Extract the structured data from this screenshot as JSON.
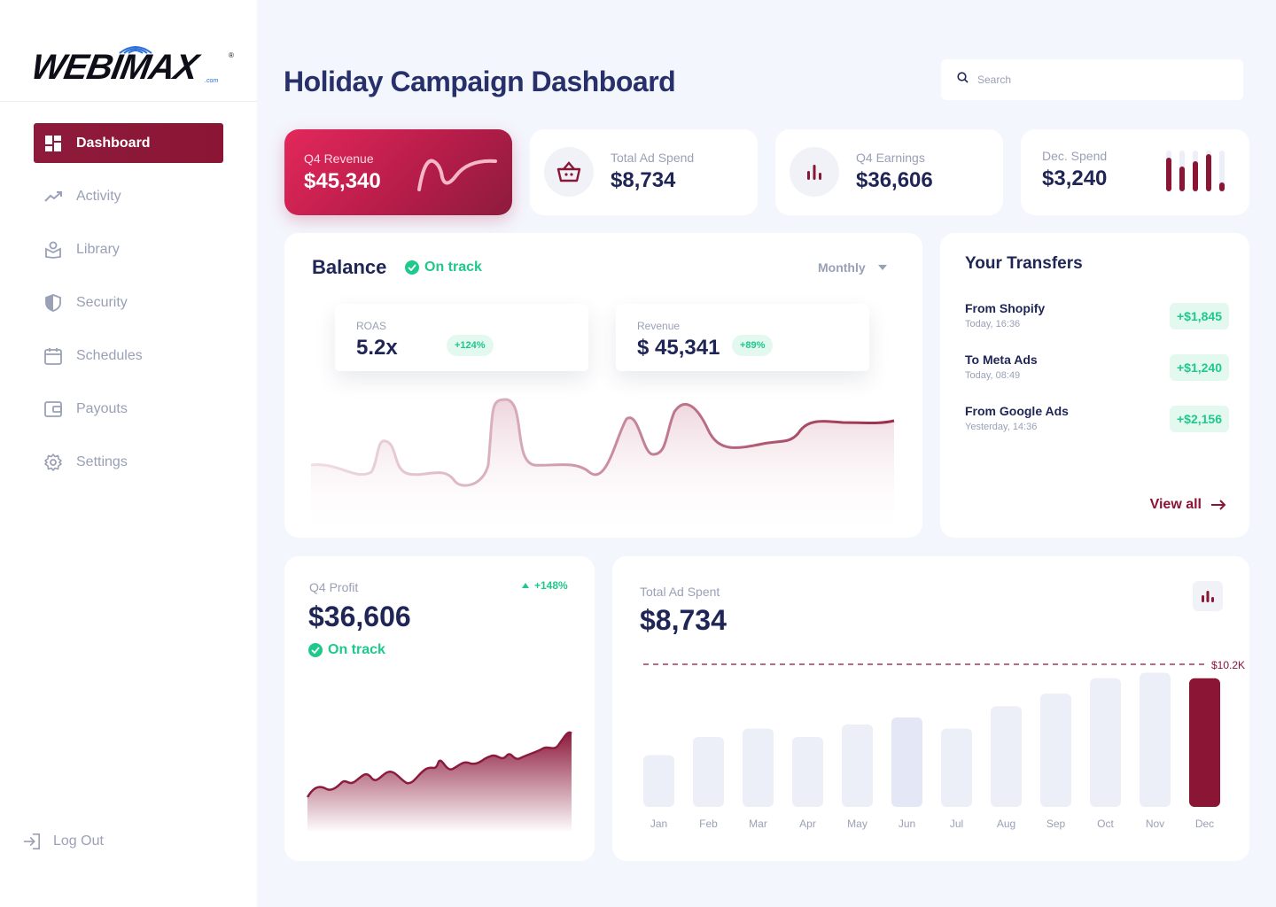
{
  "brand": {
    "logo_text": "WEBIMAX",
    "logo_reg": "®",
    "logo_sub": ".com",
    "accent": "#8a1535",
    "green": "#1ec98b"
  },
  "sidebar": {
    "items": [
      {
        "label": "Dashboard",
        "icon": "dashboard-icon",
        "active": true
      },
      {
        "label": "Activity",
        "icon": "activity-icon"
      },
      {
        "label": "Library",
        "icon": "library-icon"
      },
      {
        "label": "Security",
        "icon": "shield-icon"
      },
      {
        "label": "Schedules",
        "icon": "calendar-icon"
      },
      {
        "label": "Payouts",
        "icon": "wallet-icon"
      },
      {
        "label": "Settings",
        "icon": "gear-icon"
      }
    ],
    "logout": "Log Out"
  },
  "header": {
    "title": "Holiday Campaign Dashboard",
    "search_placeholder": "Search"
  },
  "kpis": [
    {
      "label": "Q4 Revenue",
      "value": "$45,340"
    },
    {
      "label": "Total Ad Spend",
      "value": "$8,734"
    },
    {
      "label": "Q4 Earnings",
      "value": "$36,606"
    },
    {
      "label": "Dec. Spend",
      "value": "$3,240"
    }
  ],
  "balance": {
    "title": "Balance",
    "status": "On track",
    "period": "Monthly",
    "roas": {
      "label": "ROAS",
      "value": "5.2x",
      "change": "+124%"
    },
    "revenue": {
      "label": "Revenue",
      "value": "$ 45,341",
      "change": "+89%"
    }
  },
  "transfers": {
    "title": "Your Transfers",
    "items": [
      {
        "name": "From Shopify",
        "time": "Today, 16:36",
        "amount": "+$1,845"
      },
      {
        "name": "To Meta Ads",
        "time": "Today, 08:49",
        "amount": "+$1,240"
      },
      {
        "name": "From Google Ads",
        "time": "Yesterday, 14:36",
        "amount": "+$2,156"
      }
    ],
    "view_all": "View all"
  },
  "profit": {
    "label": "Q4 Profit",
    "value": "$36,606",
    "change": "+148%",
    "status": "On track"
  },
  "ad_spent": {
    "label": "Total Ad Spent",
    "value": "$8,734",
    "target_label": "$10.2K"
  },
  "chart_data": {
    "type": "bar",
    "categories": [
      "Jan",
      "Feb",
      "Mar",
      "Apr",
      "May",
      "Jun",
      "Jul",
      "Aug",
      "Sep",
      "Oct",
      "Nov",
      "Dec"
    ],
    "values": [
      3.7,
      5.0,
      5.6,
      5.0,
      5.9,
      6.4,
      5.6,
      7.2,
      8.1,
      9.2,
      9.6,
      9.2
    ],
    "target": 10.2,
    "ylim": [
      0,
      10.2
    ],
    "highlight": "Dec"
  }
}
